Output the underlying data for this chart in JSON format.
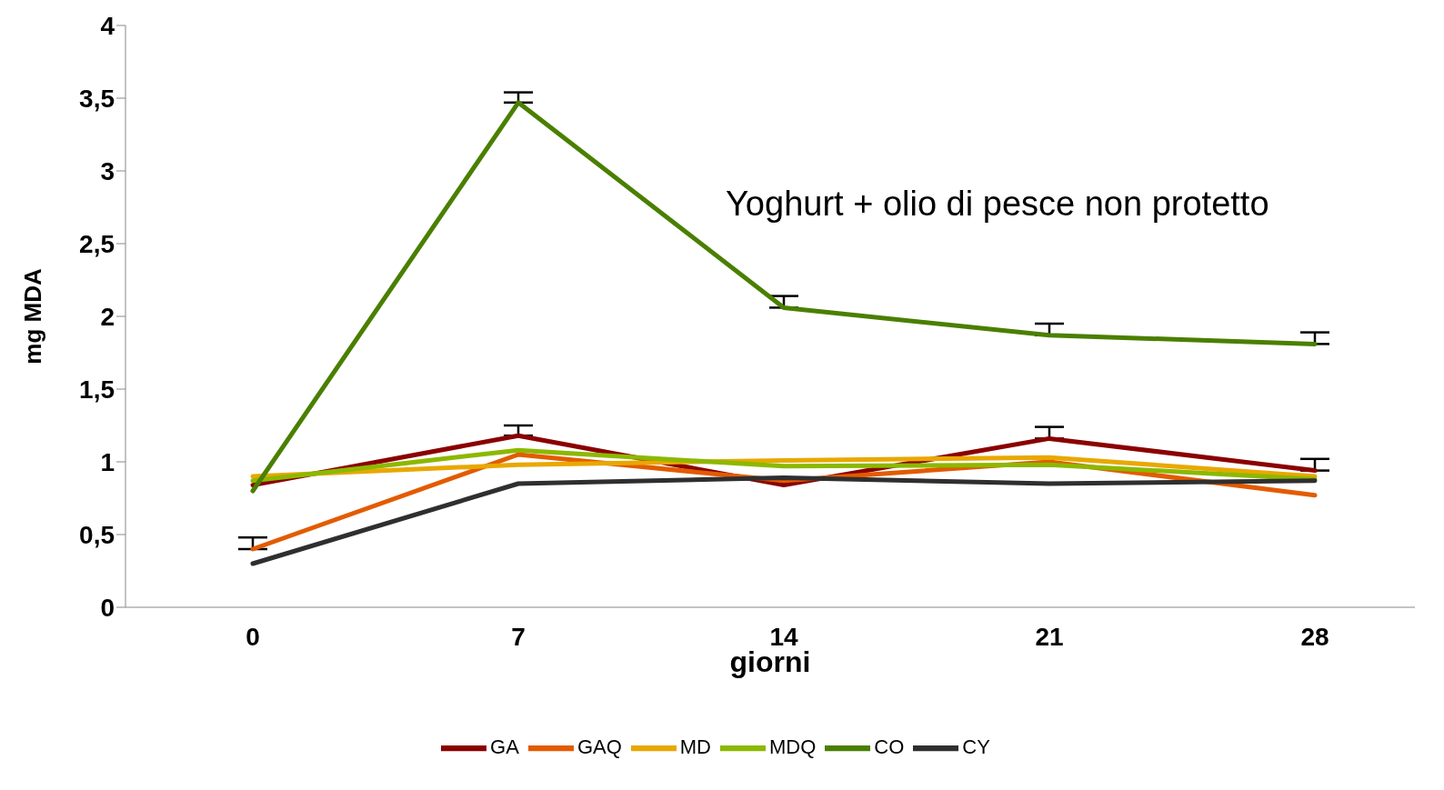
{
  "chart_data": {
    "type": "line",
    "xlabel": "giorni",
    "ylabel": "mg MDA",
    "categories": [
      "0",
      "7",
      "14",
      "21",
      "28"
    ],
    "series": [
      {
        "name": "GA",
        "color": "#8b0000",
        "values": [
          0.84,
          1.18,
          0.84,
          1.16,
          0.94
        ],
        "errors": [
          null,
          [
            1.18,
            1.25
          ],
          null,
          [
            1.16,
            1.24
          ],
          [
            0.94,
            1.02
          ]
        ]
      },
      {
        "name": "GAQ",
        "color": "#e35b00",
        "values": [
          0.4,
          1.05,
          0.87,
          1.0,
          0.77
        ],
        "errors": [
          [
            0.4,
            0.48
          ],
          null,
          null,
          null,
          null
        ]
      },
      {
        "name": "MD",
        "color": "#e8a800",
        "values": [
          0.9,
          0.98,
          1.01,
          1.03,
          0.9
        ]
      },
      {
        "name": "MDQ",
        "color": "#8cb800",
        "values": [
          0.87,
          1.08,
          0.97,
          0.98,
          0.88
        ]
      },
      {
        "name": "CO",
        "color": "#4a7f00",
        "values": [
          0.8,
          3.47,
          2.06,
          1.87,
          1.81
        ],
        "errors": [
          null,
          [
            3.47,
            3.54
          ],
          [
            2.06,
            2.14
          ],
          [
            1.87,
            1.95
          ],
          [
            1.81,
            1.89
          ]
        ]
      },
      {
        "name": "CY",
        "color": "#2f2f2f",
        "values": [
          0.3,
          0.85,
          0.89,
          0.85,
          0.87
        ]
      }
    ],
    "ylim": [
      0,
      4
    ],
    "yticks": [
      0,
      {
        "value": 0.5,
        "label": "0,5"
      },
      1,
      {
        "value": 1.5,
        "label": "1,5"
      },
      2,
      {
        "value": 2.5,
        "label": "2,5"
      },
      3,
      {
        "value": 3.5,
        "label": "3,5"
      },
      4
    ],
    "annotations": [
      "Yoghurt + olio di pesce non protetto"
    ],
    "grid": false,
    "legend": "bottom",
    "marker": "none",
    "line_style": "solid"
  }
}
